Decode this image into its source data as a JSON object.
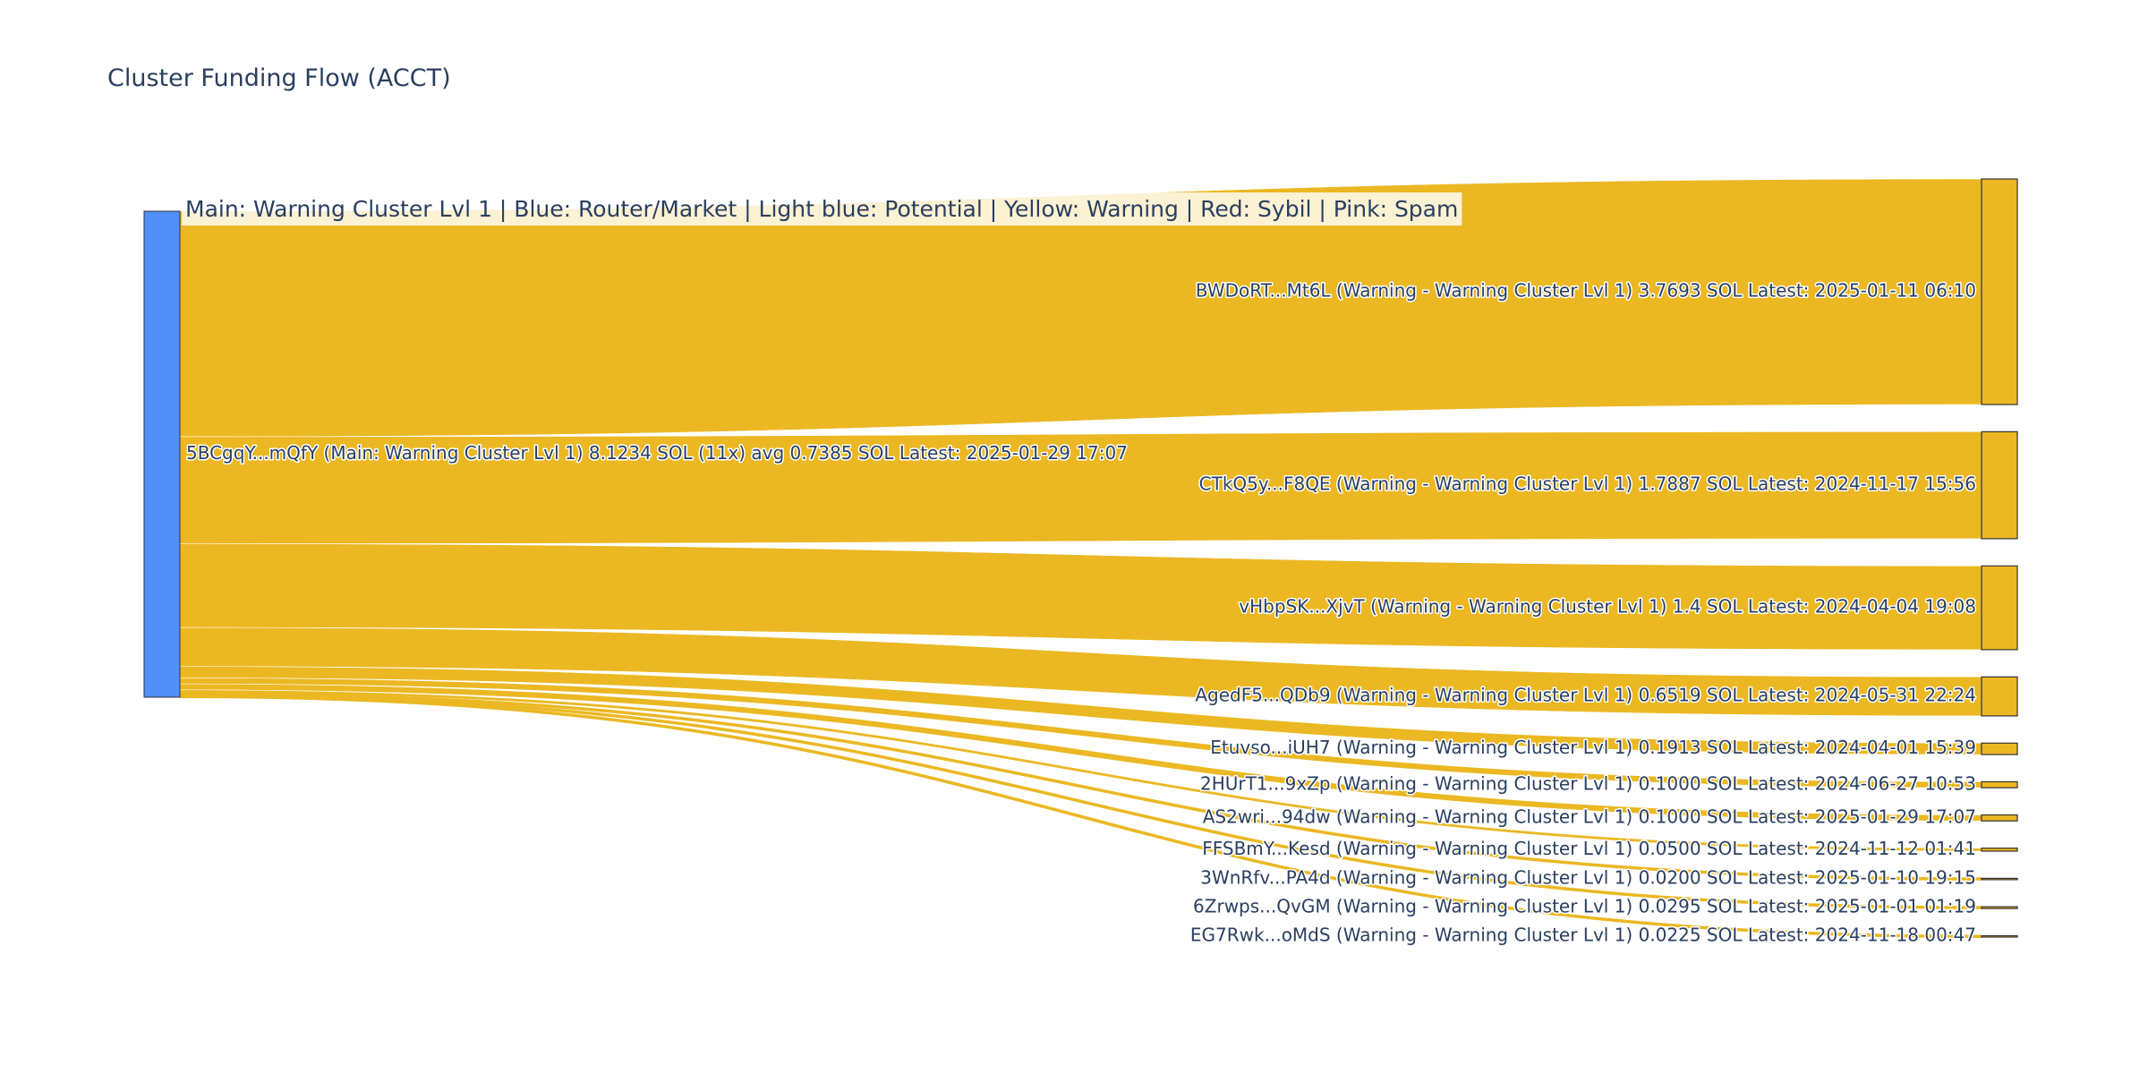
{
  "chart_data": {
    "type": "sankey",
    "title": "Cluster Funding Flow (ACCT)",
    "annotation": "Main: Warning Cluster Lvl 1  |  Blue: Router/Market | Light blue: Potential | Yellow: Warning | Red: Sybil | Pink: Spam",
    "colors": {
      "source_node": "#4f8ff7",
      "link": "#ebb823",
      "node_border": "#333333",
      "text": "#2a3f5f"
    },
    "source": {
      "label": "5BCgqY...mQfY (Main: Warning Cluster Lvl 1) 8.1234 SOL (11x) avg 0.7385 SOL Latest: 2025-01-29 17:07",
      "value": 8.1234
    },
    "targets": [
      {
        "label": "BWDoRT...Mt6L (Warning - Warning Cluster Lvl 1) 3.7693 SOL Latest: 2025-01-11 06:10",
        "value": 3.7693
      },
      {
        "label": "CTkQ5y...F8QE (Warning - Warning Cluster Lvl 1) 1.7887 SOL Latest: 2024-11-17 15:56",
        "value": 1.7887
      },
      {
        "label": "vHbpSK...XjvT (Warning - Warning Cluster Lvl 1) 1.4 SOL Latest: 2024-04-04 19:08",
        "value": 1.4
      },
      {
        "label": "AgedF5...QDb9 (Warning - Warning Cluster Lvl 1) 0.6519 SOL Latest: 2024-05-31 22:24",
        "value": 0.6519
      },
      {
        "label": "Etuvso...iUH7 (Warning - Warning Cluster Lvl 1) 0.1913 SOL Latest: 2024-04-01 15:39",
        "value": 0.1913
      },
      {
        "label": "2HUrT1...9xZp (Warning - Warning Cluster Lvl 1) 0.1000 SOL Latest: 2024-06-27 10:53",
        "value": 0.1
      },
      {
        "label": "AS2wri...94dw (Warning - Warning Cluster Lvl 1) 0.1000 SOL Latest: 2025-01-29 17:07",
        "value": 0.1
      },
      {
        "label": "FFSBmY...Kesd (Warning - Warning Cluster Lvl 1) 0.0500 SOL Latest: 2024-11-12 01:41",
        "value": 0.05
      },
      {
        "label": "3WnRfv...PA4d (Warning - Warning Cluster Lvl 1) 0.0200 SOL Latest: 2025-01-10 19:15",
        "value": 0.02
      },
      {
        "label": "6Zrwps...QvGM (Warning - Warning Cluster Lvl 1) 0.0295 SOL Latest: 2025-01-01 01:19",
        "value": 0.0295
      },
      {
        "label": "EG7Rwk...oMdS (Warning - Warning Cluster Lvl 1) 0.0225 SOL Latest: 2024-11-18 00:47",
        "value": 0.0225
      }
    ]
  }
}
